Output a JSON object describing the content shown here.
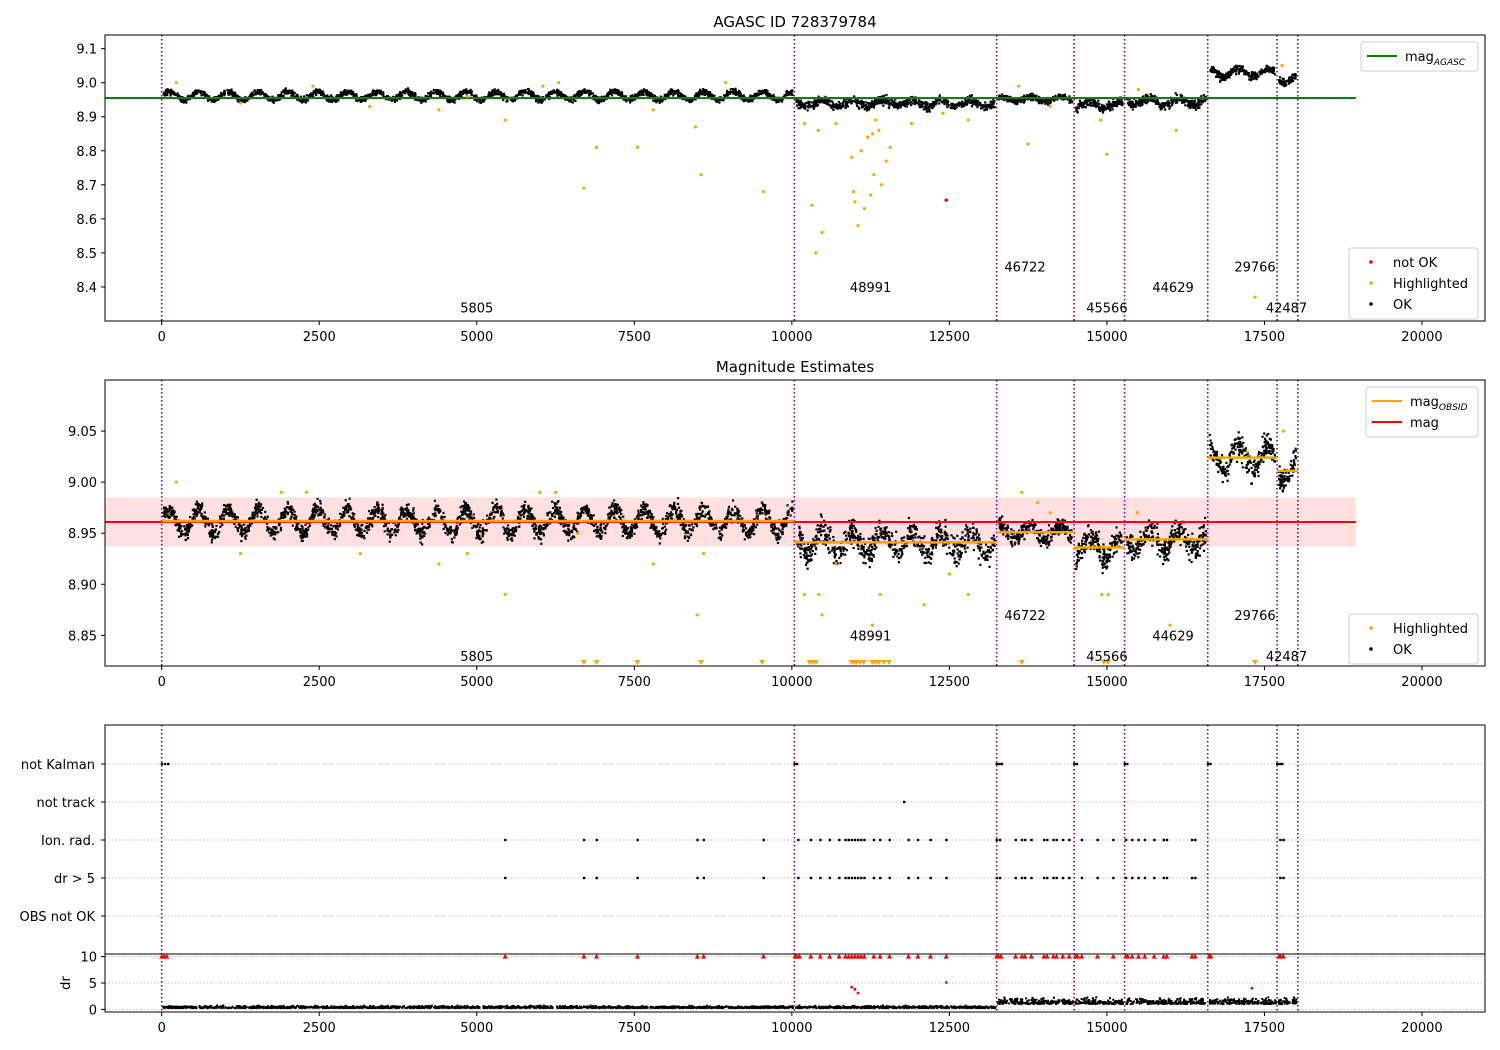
{
  "colors": {
    "ok": "#000000",
    "highlighted": "#ffa500",
    "not_ok": "#ff0000",
    "mag_agasc": "#008000",
    "mag_obsid": "#ffa500",
    "mag": "#ff0000",
    "band": "#ffcccc",
    "obs_boundary": "#800080",
    "grid": "#b0b0b0"
  },
  "chart_data": [
    {
      "type": "scatter",
      "title": "AGASC ID 728379784",
      "xlim": [
        -900,
        21000
      ],
      "ylim": [
        8.3,
        9.14
      ],
      "xticks": [
        0,
        2500,
        5000,
        7500,
        10000,
        12500,
        15000,
        17500,
        20000
      ],
      "xtick_labels": [
        "0",
        "2500",
        "5000",
        "7500",
        "10000",
        "12500",
        "15000",
        "17500",
        "20000"
      ],
      "yticks": [
        8.4,
        8.5,
        8.6,
        8.7,
        8.8,
        8.9,
        9.0,
        9.1
      ],
      "ytick_labels": [
        "8.4",
        "8.5",
        "8.6",
        "8.7",
        "8.8",
        "8.9",
        "9.0",
        "9.1"
      ],
      "legend_upper": {
        "placement": "top-right",
        "entries": [
          {
            "label": "mag",
            "sub": "AGASC",
            "kind": "line",
            "color": "#008000"
          }
        ]
      },
      "legend_lower": {
        "placement": "lower-right",
        "entries": [
          {
            "label": "not OK",
            "kind": "dot",
            "color": "#ff0000"
          },
          {
            "label": "Highlighted",
            "kind": "dot",
            "color": "#ffa500"
          },
          {
            "label": "OK",
            "kind": "dot",
            "color": "#000000"
          }
        ]
      },
      "lines": [
        {
          "name": "mag_AGASC",
          "x": [
            -900,
            18950
          ],
          "y": [
            8.955,
            8.955
          ],
          "color": "#008000"
        }
      ],
      "obs_segments": [
        {
          "obsid": "5805",
          "x0": 0,
          "x1": 10040,
          "mean": 8.962,
          "amp": 0.012,
          "sd": 0.006,
          "label_y": 8.34
        },
        {
          "obsid": "48991",
          "x0": 10040,
          "x1": 13250,
          "mean": 8.94,
          "amp": 0.01,
          "sd": 0.009,
          "label_y": 8.4
        },
        {
          "obsid": "46722",
          "x0": 13250,
          "x1": 14480,
          "mean": 8.952,
          "amp": 0.007,
          "sd": 0.006,
          "label_y": 8.46
        },
        {
          "obsid": "45566",
          "x0": 14480,
          "x1": 15280,
          "mean": 8.935,
          "amp": 0.01,
          "sd": 0.009,
          "label_y": 8.34
        },
        {
          "obsid": "44629",
          "x0": 15280,
          "x1": 16600,
          "mean": 8.945,
          "amp": 0.01,
          "sd": 0.009,
          "label_y": 8.4
        },
        {
          "obsid": "29766",
          "x0": 16600,
          "x1": 17700,
          "mean": 9.03,
          "amp": 0.012,
          "sd": 0.008,
          "label_y": 8.46
        },
        {
          "obsid": "42487",
          "x0": 17700,
          "x1": 18030,
          "mean": 9.01,
          "amp": 0.01,
          "sd": 0.008,
          "label_y": 8.34
        }
      ],
      "boundaries_x": [
        0,
        10040,
        13250,
        14480,
        15280,
        16600,
        17700,
        18030
      ],
      "highlighted_points": {
        "x": [
          230,
          1250,
          2400,
          3300,
          4400,
          4850,
          5450,
          6050,
          6300,
          6700,
          6900,
          7550,
          7800,
          8470,
          8560,
          8950,
          9550,
          10200,
          10320,
          10380,
          10420,
          10480,
          10700,
          10950,
          10980,
          11000,
          11050,
          11100,
          11150,
          11200,
          11250,
          11280,
          11300,
          11330,
          11380,
          11420,
          11500,
          11560,
          11900,
          12400,
          12800,
          13600,
          13750,
          14100,
          14900,
          15000,
          15500,
          16100,
          17350,
          17780
        ],
        "y": [
          9.0,
          8.94,
          8.99,
          8.93,
          8.92,
          8.96,
          8.89,
          8.99,
          9.0,
          8.69,
          8.81,
          8.81,
          8.92,
          8.87,
          8.73,
          9.0,
          8.68,
          8.88,
          8.64,
          8.5,
          8.86,
          8.56,
          8.88,
          8.78,
          8.68,
          8.65,
          8.58,
          8.8,
          8.63,
          8.84,
          8.67,
          8.85,
          8.73,
          8.89,
          8.86,
          8.7,
          8.77,
          8.81,
          8.88,
          8.91,
          8.89,
          8.99,
          8.82,
          8.93,
          8.89,
          8.79,
          8.98,
          8.86,
          8.37,
          9.05
        ]
      },
      "not_ok_points": {
        "x": [
          12450
        ],
        "y": [
          8.655
        ]
      },
      "obsid_labels_x": [
        5000,
        11250,
        13700,
        15000,
        16050,
        17350,
        17850
      ]
    },
    {
      "type": "scatter",
      "title": "Magnitude Estimates",
      "xlim": [
        -900,
        21000
      ],
      "ylim": [
        8.82,
        9.1
      ],
      "xticks": [
        0,
        2500,
        5000,
        7500,
        10000,
        12500,
        15000,
        17500,
        20000
      ],
      "xtick_labels": [
        "0",
        "2500",
        "5000",
        "7500",
        "10000",
        "12500",
        "15000",
        "17500",
        "20000"
      ],
      "yticks": [
        8.85,
        8.9,
        8.95,
        9.0,
        9.05
      ],
      "ytick_labels": [
        "8.85",
        "8.90",
        "8.95",
        "9.00",
        "9.05"
      ],
      "legend_upper": {
        "placement": "top-right",
        "entries": [
          {
            "label": "mag",
            "sub": "OBSID",
            "kind": "line",
            "color": "#ffa500"
          },
          {
            "label": "mag",
            "sub": "",
            "kind": "line",
            "color": "#ff0000"
          }
        ]
      },
      "legend_lower": {
        "placement": "lower-right",
        "entries": [
          {
            "label": "Highlighted",
            "kind": "dot",
            "color": "#ffa500"
          },
          {
            "label": "OK",
            "kind": "dot",
            "color": "#000000"
          }
        ]
      },
      "mag_line": {
        "x": [
          -900,
          18950
        ],
        "y": 8.961,
        "band": [
          8.937,
          8.985
        ]
      },
      "obsid_means": [
        8.962,
        8.941,
        8.951,
        8.936,
        8.944,
        9.024,
        9.011
      ],
      "obsid_labels": [
        "5805",
        "48991",
        "46722",
        "45566",
        "44629",
        "29766",
        "42487"
      ],
      "obsid_labels_x": [
        5000,
        11250,
        13700,
        15000,
        16050,
        17350,
        17850
      ],
      "obsid_labels_y": [
        8.83,
        8.85,
        8.87,
        8.83,
        8.85,
        8.87,
        8.83
      ],
      "boundaries_x": [
        0,
        10040,
        13250,
        14480,
        15280,
        16600,
        17700,
        18030
      ],
      "highlighted_points": {
        "x": [
          230,
          1250,
          1900,
          2300,
          3150,
          4400,
          4850,
          5450,
          6000,
          6250,
          6600,
          7800,
          8500,
          8600,
          10200,
          10430,
          10480,
          10700,
          11280,
          11350,
          11400,
          12100,
          12500,
          12800,
          13650,
          13900,
          14100,
          14920,
          15020,
          15480,
          16000,
          17230,
          17800
        ],
        "y": [
          9.0,
          8.93,
          8.99,
          8.99,
          8.93,
          8.92,
          8.93,
          8.89,
          8.99,
          8.99,
          8.95,
          8.92,
          8.87,
          8.93,
          8.89,
          8.89,
          8.87,
          8.92,
          8.86,
          8.85,
          8.89,
          8.88,
          8.91,
          8.89,
          8.99,
          8.98,
          8.97,
          8.89,
          8.89,
          8.97,
          8.86,
          9.03,
          9.05
        ]
      },
      "offscale_x": [
        6700,
        6900,
        7550,
        8560,
        9530,
        10280,
        10330,
        10380,
        10950,
        10990,
        11030,
        11080,
        11140,
        11280,
        11330,
        11380,
        11460,
        11540,
        13650,
        14950,
        15020,
        17350
      ]
    },
    {
      "type": "scatter",
      "title": "",
      "xlim": [
        -900,
        21000
      ],
      "flag_rows": [
        "not Kalman",
        "not track",
        "Ion. rad.",
        "dr > 5",
        "OBS not OK"
      ],
      "flags": {
        "not Kalman": [
          0,
          50,
          100,
          10040,
          10080,
          13250,
          13290,
          13330,
          14480,
          14520,
          15280,
          15320,
          16600,
          16640,
          17700,
          17740,
          17780
        ],
        "not track": [
          11780
        ],
        "Ion. rad.": [
          5450,
          6700,
          6900,
          7550,
          8500,
          8600,
          9550,
          10100,
          10300,
          10450,
          10600,
          10750,
          10850,
          10900,
          10950,
          11000,
          11050,
          11100,
          11150,
          11300,
          11400,
          11550,
          11850,
          12000,
          12200,
          12450,
          13250,
          13300,
          13550,
          13650,
          13700,
          13800,
          14000,
          14050,
          14150,
          14200,
          14300,
          14400,
          14600,
          14850,
          15100,
          15300,
          15400,
          15500,
          15600,
          15750,
          15900,
          15950,
          16350,
          16400,
          17750,
          17800
        ],
        "dr > 5": [
          5450,
          6700,
          6900,
          7550,
          8500,
          8600,
          9550,
          10100,
          10300,
          10450,
          10600,
          10750,
          10850,
          10900,
          10950,
          11000,
          11050,
          11100,
          11150,
          11300,
          11400,
          11550,
          11850,
          12000,
          12200,
          12450,
          13250,
          13300,
          13550,
          13650,
          13700,
          13800,
          14000,
          14050,
          14150,
          14200,
          14300,
          14400,
          14600,
          14850,
          15100,
          15300,
          15400,
          15500,
          15600,
          15750,
          15900,
          15950,
          16350,
          16400,
          17750,
          17800
        ],
        "OBS not OK": []
      },
      "xticks": [
        0,
        2500,
        5000,
        7500,
        10000,
        12500,
        15000,
        17500,
        20000
      ],
      "xtick_labels": [
        "0",
        "2500",
        "5000",
        "7500",
        "10000",
        "12500",
        "15000",
        "17500",
        "20000"
      ],
      "dr_axis": {
        "ylabel": "dr",
        "ylim": [
          -0.5,
          10.5
        ],
        "yticks": [
          0,
          5,
          10
        ],
        "ytick_labels": [
          "0",
          "5",
          "10"
        ]
      },
      "dr_capped_x": [
        0,
        40,
        80,
        5450,
        6700,
        6900,
        7550,
        8500,
        8600,
        9550,
        10050,
        10080,
        10120,
        10300,
        10450,
        10600,
        10750,
        10850,
        10900,
        10950,
        11000,
        11050,
        11100,
        11150,
        11300,
        11400,
        11550,
        11850,
        12000,
        12200,
        12450,
        13250,
        13280,
        13320,
        13550,
        13650,
        13700,
        13800,
        14000,
        14050,
        14150,
        14200,
        14300,
        14400,
        14500,
        14530,
        14600,
        14850,
        15100,
        15300,
        15330,
        15400,
        15500,
        15600,
        15750,
        15900,
        15950,
        16350,
        16400,
        16620,
        16650,
        17730,
        17760,
        17800
      ],
      "dr_outliers": {
        "x": [
          10950,
          11000,
          11050,
          12450,
          17300
        ],
        "y": [
          4.2,
          3.8,
          3.1,
          5.1,
          4.0
        ],
        "color": "#ff0000"
      },
      "boundaries_x": [
        0,
        10040,
        13250,
        14480,
        15280,
        16600,
        17700,
        18030
      ]
    }
  ]
}
